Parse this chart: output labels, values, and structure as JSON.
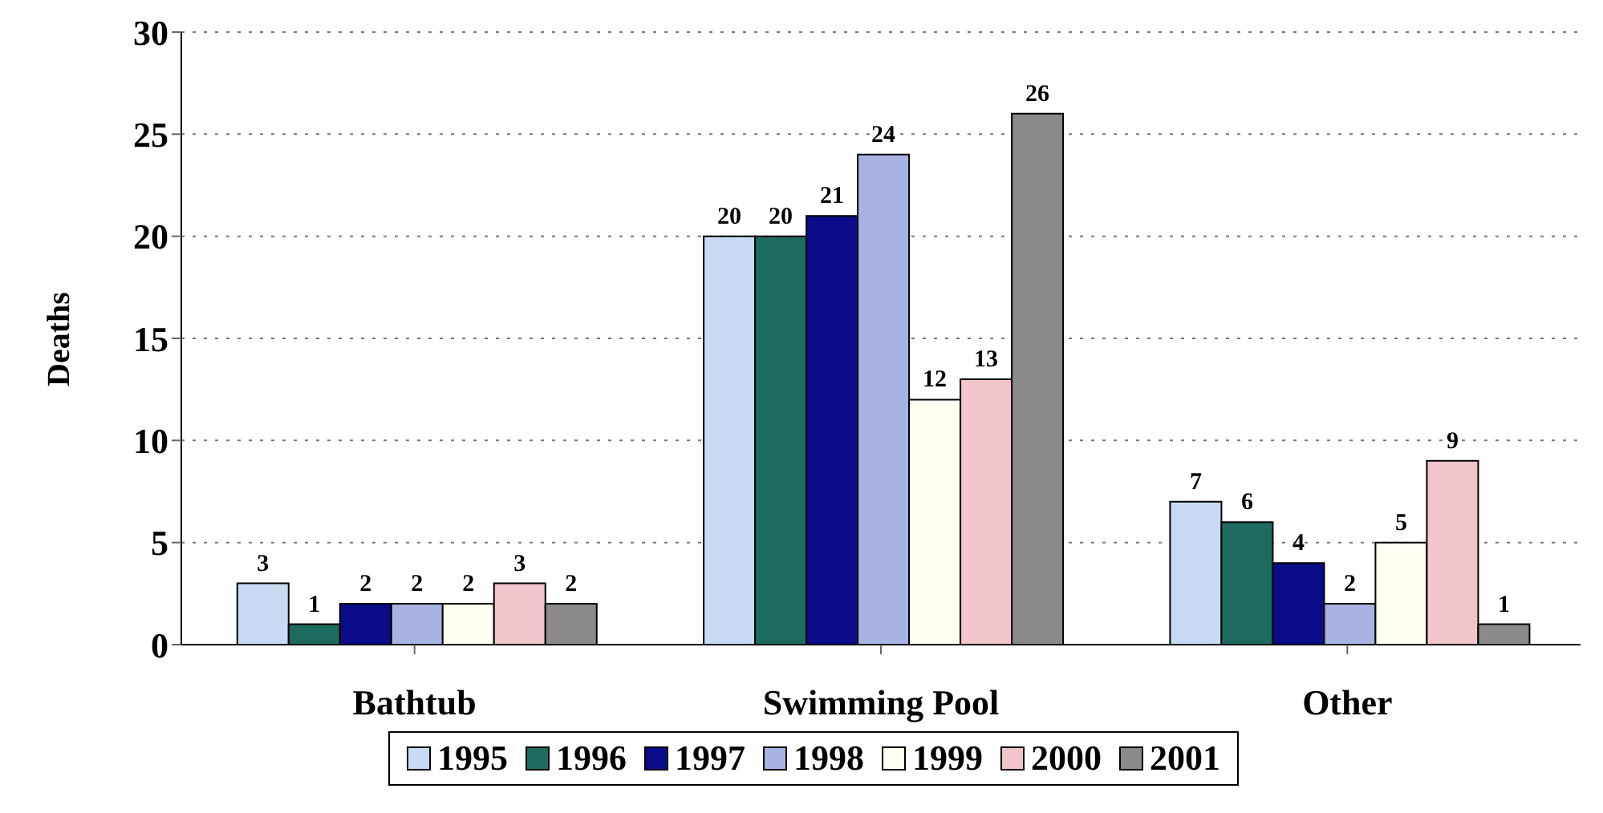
{
  "chart_data": {
    "type": "bar",
    "ylabel": "Deaths",
    "categories": [
      "Bathtub",
      "Swimming Pool",
      "Other"
    ],
    "series": [
      {
        "name": "1995",
        "color": "#c9dbf2",
        "values": [
          3,
          20,
          7
        ]
      },
      {
        "name": "1996",
        "color": "#1d6b5f",
        "values": [
          1,
          20,
          6
        ]
      },
      {
        "name": "1997",
        "color": "#0b0b8a",
        "values": [
          2,
          21,
          4
        ]
      },
      {
        "name": "1998",
        "color": "#a9b3e3",
        "values": [
          2,
          24,
          2
        ]
      },
      {
        "name": "1999",
        "color": "#fffff2",
        "values": [
          2,
          12,
          5
        ]
      },
      {
        "name": "2000",
        "color": "#f2c4cc",
        "values": [
          3,
          13,
          9
        ]
      },
      {
        "name": "2001",
        "color": "#8a8a8a",
        "values": [
          2,
          26,
          1
        ]
      }
    ],
    "ylim": [
      0,
      30
    ],
    "yticks": [
      0,
      5,
      10,
      15,
      20,
      25,
      30
    ],
    "grid": "y",
    "legend": "bottom",
    "data_labels": true
  }
}
